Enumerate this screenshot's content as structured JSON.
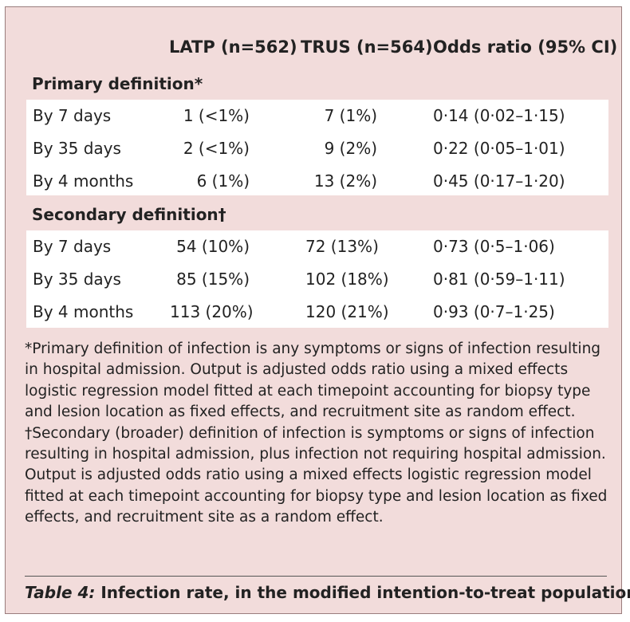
{
  "table": {
    "columns": {
      "latp": "LATP (n=562)",
      "trus": "TRUS (n=564)",
      "odds_ratio": "Odds ratio (95% CI)"
    },
    "primary": {
      "label": "Primary definition*",
      "rows": [
        {
          "timepoint": "By 7 days",
          "latp": "1 (<1%)",
          "trus": "7 (1%)",
          "odds_ratio": "0·14 (0·02–1·15)"
        },
        {
          "timepoint": "By 35 days",
          "latp": "2 (<1%)",
          "trus": "9 (2%)",
          "odds_ratio": "0·22 (0·05–1·01)"
        },
        {
          "timepoint": "By 4 months",
          "latp": "6 (1%)",
          "trus": "13 (2%)",
          "odds_ratio": "0·45 (0·17–1·20)"
        }
      ]
    },
    "secondary": {
      "label": "Secondary definition†",
      "rows": [
        {
          "timepoint": "By 7 days",
          "latp": "54 (10%)",
          "trus": "72 (13%)",
          "odds_ratio": "0·73 (0·5–1·06)"
        },
        {
          "timepoint": "By 35 days",
          "latp": "85 (15%)",
          "trus": "102 (18%)",
          "odds_ratio": "0·81 (0·59–1·11)"
        },
        {
          "timepoint": "By 4 months",
          "latp": "113 (20%)",
          "trus": "120 (21%)",
          "odds_ratio": "0·93 (0·7–1·25)"
        }
      ]
    }
  },
  "footnote": "*Primary definition of infection is any symptoms or signs of infection resulting in hospital admission. Output is adjusted odds ratio using a mixed effects logistic regression model fitted at each timepoint accounting for biopsy type and lesion location as fixed effects, and recruitment site as random effect. †Secondary (broader) definition of infection is symptoms or signs of infection resulting in hospital admission, plus infection not requiring hospital admission. Output is adjusted odds ratio using a mixed effects logistic regression model fitted at each timepoint accounting for biopsy type and lesion location as fixed effects, and recruitment site as a random effect.",
  "caption": {
    "label": "Table 4:",
    "text": " Infection rate, in the modified intention-to-treat population"
  },
  "colors": {
    "panel_background": "#f2dcdb",
    "row_background": "#ffffff"
  }
}
